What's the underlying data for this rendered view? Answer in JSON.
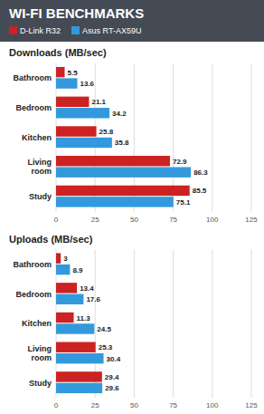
{
  "title": "WI-FI BENCHMARKS",
  "chart_data": [
    {
      "type": "bar",
      "orientation": "horizontal",
      "title": "Downloads (MB/sec)",
      "categories": [
        "Study",
        "Living\nroom",
        "Kitchen",
        "Bedroom",
        "Bathroom"
      ],
      "series": [
        {
          "name": "D-Link R32",
          "color": "#cc2222",
          "values": [
            85.5,
            72.9,
            25.8,
            21.1,
            5.5
          ]
        },
        {
          "name": "Asus RT-AX59U",
          "color": "#3399dd",
          "values": [
            75.1,
            86.3,
            35.8,
            34.2,
            13.6
          ]
        }
      ],
      "xlim": [
        0,
        125
      ],
      "xticks": [
        0,
        25,
        50,
        75,
        100,
        125
      ],
      "grid": true,
      "data_labels": true,
      "legend": "top"
    },
    {
      "type": "bar",
      "orientation": "horizontal",
      "title": "Uploads (MB/sec)",
      "categories": [
        "Study",
        "Living\nroom",
        "Kitchen",
        "Bedroom",
        "Bathroom"
      ],
      "series": [
        {
          "name": "D-Link R32",
          "color": "#cc2222",
          "values": [
            29.4,
            25.3,
            11.3,
            13.4,
            3
          ]
        },
        {
          "name": "Asus RT-AX59U",
          "color": "#3399dd",
          "values": [
            29.6,
            30.4,
            24.5,
            17.6,
            8.9
          ]
        }
      ],
      "xlim": [
        0,
        125
      ],
      "xticks": [
        0,
        25,
        50,
        75,
        100,
        125
      ],
      "grid": true,
      "data_labels": true
    }
  ]
}
